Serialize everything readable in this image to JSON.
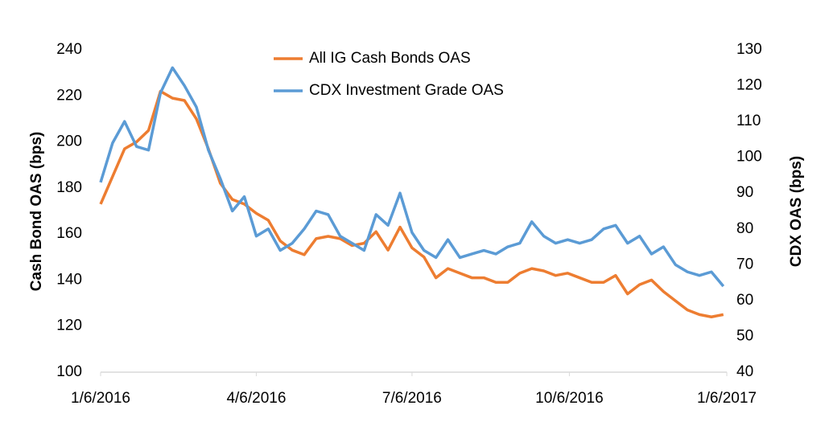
{
  "chart_data": {
    "type": "line",
    "y_label": "Cash Bond OAS (bps)",
    "y2_label": "CDX OAS (bps)",
    "x": [
      "2016-01-06",
      "2016-01-13",
      "2016-01-20",
      "2016-01-27",
      "2016-02-03",
      "2016-02-10",
      "2016-02-17",
      "2016-02-24",
      "2016-03-02",
      "2016-03-09",
      "2016-03-16",
      "2016-03-23",
      "2016-03-30",
      "2016-04-06",
      "2016-04-13",
      "2016-04-20",
      "2016-04-27",
      "2016-05-04",
      "2016-05-11",
      "2016-05-18",
      "2016-05-25",
      "2016-06-01",
      "2016-06-08",
      "2016-06-15",
      "2016-06-22",
      "2016-06-29",
      "2016-07-06",
      "2016-07-13",
      "2016-07-20",
      "2016-07-27",
      "2016-08-03",
      "2016-08-10",
      "2016-08-17",
      "2016-08-24",
      "2016-08-31",
      "2016-09-07",
      "2016-09-14",
      "2016-09-21",
      "2016-09-28",
      "2016-10-05",
      "2016-10-12",
      "2016-10-19",
      "2016-10-26",
      "2016-11-02",
      "2016-11-09",
      "2016-11-16",
      "2016-11-23",
      "2016-11-30",
      "2016-12-07",
      "2016-12-14",
      "2016-12-21",
      "2016-12-28",
      "2017-01-04"
    ],
    "series": [
      {
        "name": "All IG Cash Bonds OAS",
        "color": "#ed7d31",
        "axis": "y",
        "values": [
          173,
          185,
          197,
          200,
          205,
          222,
          219,
          218,
          210,
          197,
          182,
          175,
          173,
          169,
          166,
          157,
          153,
          151,
          158,
          159,
          158,
          155,
          156,
          161,
          153,
          163,
          154,
          150,
          141,
          145,
          143,
          141,
          141,
          139,
          139,
          143,
          145,
          144,
          142,
          143,
          141,
          139,
          139,
          142,
          134,
          138,
          140,
          135,
          131,
          127,
          125,
          124,
          125
        ]
      },
      {
        "name": "CDX Investment Grade OAS",
        "color": "#5b9bd5",
        "axis": "y2",
        "values": [
          93,
          104,
          110,
          103,
          102,
          118,
          125,
          120,
          114,
          102,
          94,
          85,
          89,
          78,
          80,
          74,
          76,
          80,
          85,
          84,
          78,
          76,
          74,
          84,
          81,
          90,
          79,
          74,
          72,
          77,
          72,
          73,
          74,
          73,
          75,
          76,
          82,
          78,
          76,
          77,
          76,
          77,
          80,
          81,
          76,
          78,
          73,
          75,
          70,
          68,
          67,
          68,
          64
        ]
      }
    ],
    "xlim": [
      "2016-01-06",
      "2017-01-06"
    ],
    "xticks": [
      {
        "value": "2016-01-06",
        "label": "1/6/2016"
      },
      {
        "value": "2016-04-06",
        "label": "4/6/2016"
      },
      {
        "value": "2016-07-06",
        "label": "7/6/2016"
      },
      {
        "value": "2016-10-06",
        "label": "10/6/2016"
      },
      {
        "value": "2017-01-06",
        "label": "1/6/2017"
      }
    ],
    "ylim": [
      100,
      240
    ],
    "yticks": [
      100,
      120,
      140,
      160,
      180,
      200,
      220,
      240
    ],
    "y2lim": [
      40,
      130
    ],
    "y2ticks": [
      40,
      50,
      60,
      70,
      80,
      90,
      100,
      110,
      120,
      130
    ],
    "legend": "top"
  }
}
